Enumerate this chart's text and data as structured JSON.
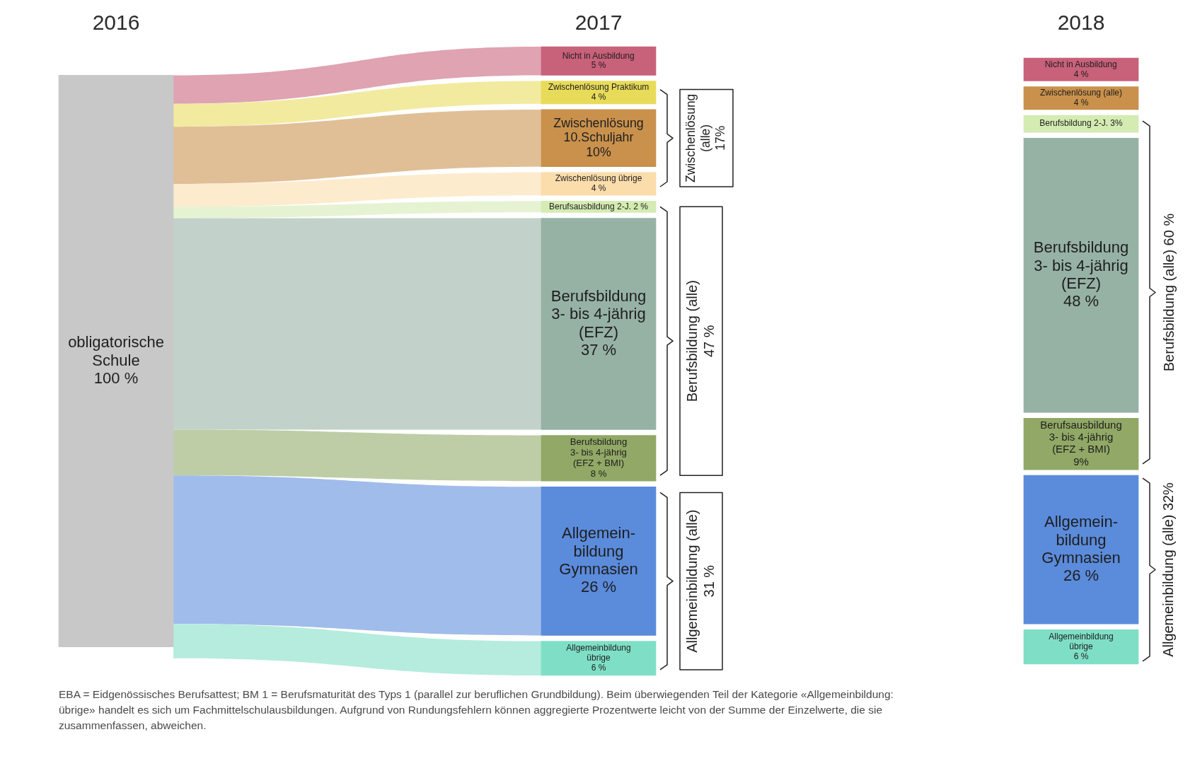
{
  "chart_data": {
    "type": "other",
    "categories": [
      "2016",
      "2017",
      "2018"
    ],
    "series": [
      {
        "name": "obligatorische Schule",
        "color": "#c8c8c8",
        "values": [
          100,
          null,
          null
        ],
        "value_labels": [
          "100 %",
          null,
          null
        ]
      },
      {
        "name": "Nicht in Ausbildung",
        "color": "#c8617a",
        "values": [
          null,
          5,
          4
        ],
        "value_labels": [
          null,
          "5 %",
          "4 %"
        ]
      },
      {
        "name": "Zwischenlösung (alle)",
        "type": "other",
        "color": "#222222",
        "values": [
          null,
          17,
          null
        ],
        "value_labels": [
          null,
          "17%",
          null
        ]
      },
      {
        "name": "Zwischenlösung Praktikum",
        "color": "#e8db5a",
        "values": [
          null,
          4,
          null
        ],
        "value_labels": [
          null,
          "4 %",
          null
        ]
      },
      {
        "name": "Zwischenlösung 10.Schuljahr",
        "color": "#c9914c",
        "values": [
          null,
          10,
          null
        ],
        "value_labels": [
          null,
          "10%",
          null
        ]
      },
      {
        "name": "Zwischenlösung übrige",
        "color": "#fbdcab",
        "values": [
          null,
          4,
          null
        ],
        "value_labels": [
          null,
          "4 %",
          null
        ]
      },
      {
        "name": "Zwischenlösung (alle)",
        "color": "#c9914c",
        "values": [
          null,
          null,
          4
        ],
        "value_labels": [
          null,
          null,
          "4 %"
        ]
      },
      {
        "name": "Berufsbildung (alle)",
        "type": "other",
        "color": "#222222",
        "values": [
          null,
          47,
          60
        ],
        "value_labels": [
          null,
          "47 %",
          "60 %"
        ]
      },
      {
        "name": "Berufsausbildung 2-J.",
        "color": "#d4ebb2",
        "values": [
          null,
          2,
          null
        ],
        "value_labels": [
          null,
          "2 %",
          null
        ]
      },
      {
        "name": "Berufsbildung 2-J.",
        "color": "#d4ebb2",
        "values": [
          null,
          null,
          3
        ],
        "value_labels": [
          null,
          null,
          "3%"
        ]
      },
      {
        "name": "Berufsbildung 3- bis 4-jährig (EFZ)",
        "color": "#96b2a4",
        "values": [
          null,
          37,
          48
        ],
        "value_labels": [
          null,
          "37 %",
          "48 %"
        ]
      },
      {
        "name": "Berufsbildung 3- bis 4-jährig (EFZ + BMI)",
        "color": "#91a866",
        "values": [
          null,
          8,
          null
        ],
        "value_labels": [
          null,
          "8 %",
          null
        ]
      },
      {
        "name": "Berufsausbildung 3- bis 4-jährig (EFZ + BMI)",
        "color": "#91a866",
        "values": [
          null,
          null,
          9
        ],
        "value_labels": [
          null,
          null,
          "9%"
        ]
      },
      {
        "name": "Allgemeinbildung (alle)",
        "type": "other",
        "color": "#222222",
        "values": [
          null,
          31,
          32
        ],
        "value_labels": [
          null,
          "31 %",
          "32%"
        ]
      },
      {
        "name": "Allgemein-bildung Gymnasien",
        "color": "#5b8bdb",
        "values": [
          null,
          26,
          26
        ],
        "value_labels": [
          null,
          "26 %",
          "26 %"
        ]
      },
      {
        "name": "Allgemeinbildung übrige",
        "color": "#7fdfc6",
        "values": [
          null,
          6,
          6
        ],
        "value_labels": [
          null,
          "6 %",
          "6 %"
        ]
      }
    ],
    "annotations": [
      "EBA = Eidgenössisches Berufsattest; BM 1 = Berufsmaturität des Typs 1 (parallel zur beruflichen Grundbildung). Beim überwiegenden Teil der Kategorie «Allgemeinbildung: übrige» handelt es sich um Fachmittelschulausbildungen. Aufgrund von Rundungsfehlern können aggregierte Prozentwerte leicht von der Summe der Einzelwerte, die sie zusammenfassen, abweichen."
    ]
  }
}
